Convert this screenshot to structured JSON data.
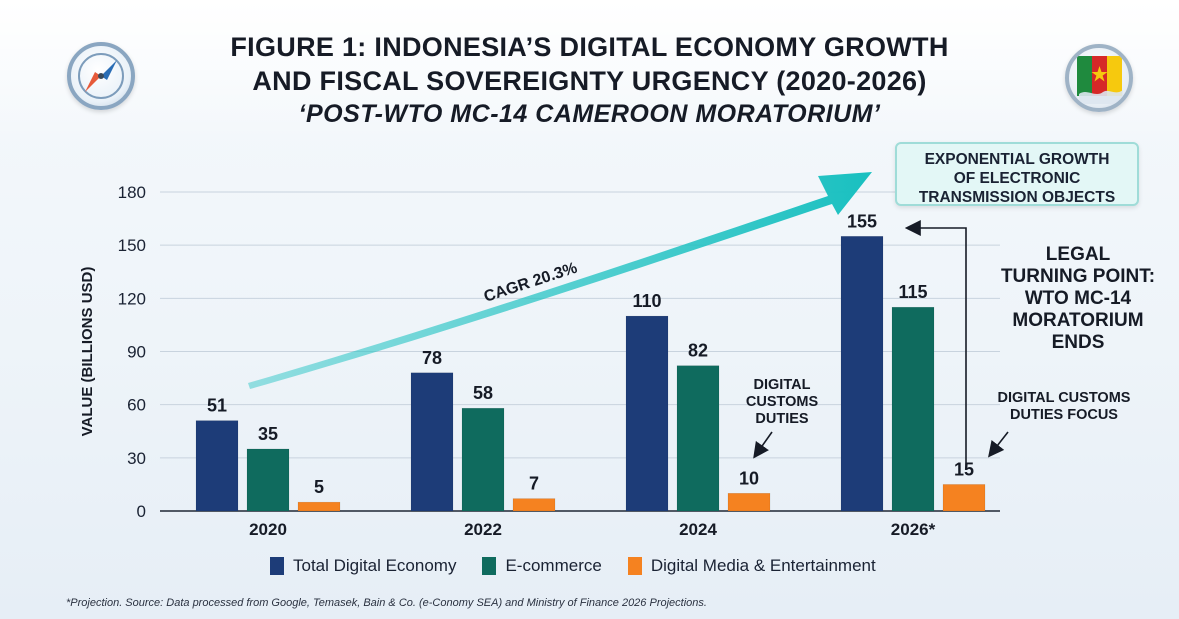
{
  "header": {
    "title_line1": "FIGURE 1: INDONESIA’S DIGITAL ECONOMY GROWTH",
    "title_line2": "AND FISCAL SOVEREIGNTY URGENCY (2020-2026)",
    "subtitle": "‘POST-WTO MC-14 CAMEROON MORATORIUM’"
  },
  "badges": {
    "left_icon": "compass-icon",
    "right_icon": "cameroon-flag-indonesia-map-icon"
  },
  "chart_data": {
    "type": "bar",
    "categories": [
      "2020",
      "2022",
      "2024",
      "2026*"
    ],
    "series": [
      {
        "name": "Total Digital Economy",
        "values": [
          51,
          78,
          110,
          155
        ],
        "color": "#1d3c78"
      },
      {
        "name": "E-commerce",
        "values": [
          35,
          58,
          82,
          115
        ],
        "color": "#0f6b5e"
      },
      {
        "name": "Digital Media & Entertainment",
        "values": [
          5,
          7,
          10,
          15
        ],
        "color": "#f58220"
      }
    ],
    "ylabel": "VALUE (BILLIONS USD)",
    "ylim": [
      0,
      180
    ],
    "yticks": [
      0,
      30,
      60,
      90,
      120,
      150,
      180
    ],
    "grid": true,
    "legend_position": "bottom",
    "growth_arrow_label": "CAGR 20.3%",
    "growth_arrow_color": "#22c3c3"
  },
  "annotations": {
    "callout_lines": [
      "EXPONENTIAL GROWTH",
      "OF ELECTRONIC",
      "TRANSMISSION OBJECTS"
    ],
    "legal_lines": [
      "LEGAL",
      "TURNING POINT:",
      "WTO MC-14",
      "MORATORIUM",
      "ENDS"
    ],
    "customs_2024_lines": [
      "DIGITAL",
      "CUSTOMS",
      "DUTIES"
    ],
    "customs_2026_lines": [
      "DIGITAL CUSTOMS",
      "DUTIES FOCUS"
    ]
  },
  "footnote": "*Projection. Source: Data processed from Google, Temasek, Bain & Co. (e-Conomy SEA) and Ministry of Finance 2026 Projections."
}
